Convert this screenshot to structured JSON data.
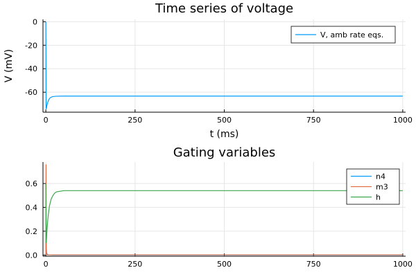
{
  "chart_data": [
    {
      "type": "line",
      "title": "Time series of voltage",
      "xlabel": "t (ms)",
      "ylabel": "V (mV)",
      "xlim": [
        -8,
        1008
      ],
      "ylim": [
        -77,
        2
      ],
      "xticks": [
        0,
        250,
        500,
        750,
        1000
      ],
      "yticks": [
        0,
        -20,
        -40,
        -60
      ],
      "grid": true,
      "legend_position": "top-right",
      "series": [
        {
          "name": "V, amb rate eqs.",
          "color": "#009af9",
          "x": [
            0,
            0.3,
            0.8,
            1.5,
            2.5,
            4,
            6,
            8,
            10,
            12,
            15,
            20,
            30,
            50,
            100,
            250,
            500,
            750,
            1000
          ],
          "y": [
            0,
            -20,
            -74,
            -74,
            -72,
            -70,
            -68,
            -66.5,
            -65.5,
            -64.8,
            -64.2,
            -63.7,
            -63.4,
            -63.3,
            -63.3,
            -63.3,
            -63.3,
            -63.3,
            -63.3
          ]
        }
      ]
    },
    {
      "type": "line",
      "title": "Gating variables",
      "xlabel": "",
      "ylabel": "",
      "xlim": [
        -8,
        1008
      ],
      "ylim": [
        -0.01,
        0.78
      ],
      "xticks": [
        0,
        250,
        500,
        750,
        1000
      ],
      "yticks": [
        0.0,
        0.2,
        0.4,
        0.6
      ],
      "grid": true,
      "legend_position": "top-right",
      "series": [
        {
          "name": "n4",
          "color": "#009af9",
          "x": [
            0,
            0.5,
            1,
            2,
            4,
            8,
            20,
            100,
            500,
            1000
          ],
          "y": [
            0.05,
            0.2,
            0.1,
            0.02,
            0.005,
            0.002,
            0.001,
            0.001,
            0.001,
            0.001
          ]
        },
        {
          "name": "m3",
          "color": "#e26f46",
          "x": [
            0,
            0.3,
            0.6,
            1,
            1.5,
            2,
            3,
            5,
            10,
            100,
            500,
            1000
          ],
          "y": [
            0.0,
            0.4,
            0.76,
            0.3,
            0.05,
            0.01,
            0.003,
            0.002,
            0.002,
            0.002,
            0.002,
            0.002
          ]
        },
        {
          "name": "h",
          "color": "#3da44d",
          "x": [
            0,
            1,
            2,
            3,
            5,
            7,
            10,
            15,
            20,
            25,
            30,
            40,
            50,
            70,
            100,
            250,
            500,
            750,
            1000
          ],
          "y": [
            0.6,
            0.1,
            0.14,
            0.2,
            0.28,
            0.34,
            0.41,
            0.47,
            0.5,
            0.52,
            0.53,
            0.535,
            0.54,
            0.54,
            0.54,
            0.54,
            0.54,
            0.54,
            0.54
          ]
        }
      ]
    }
  ]
}
